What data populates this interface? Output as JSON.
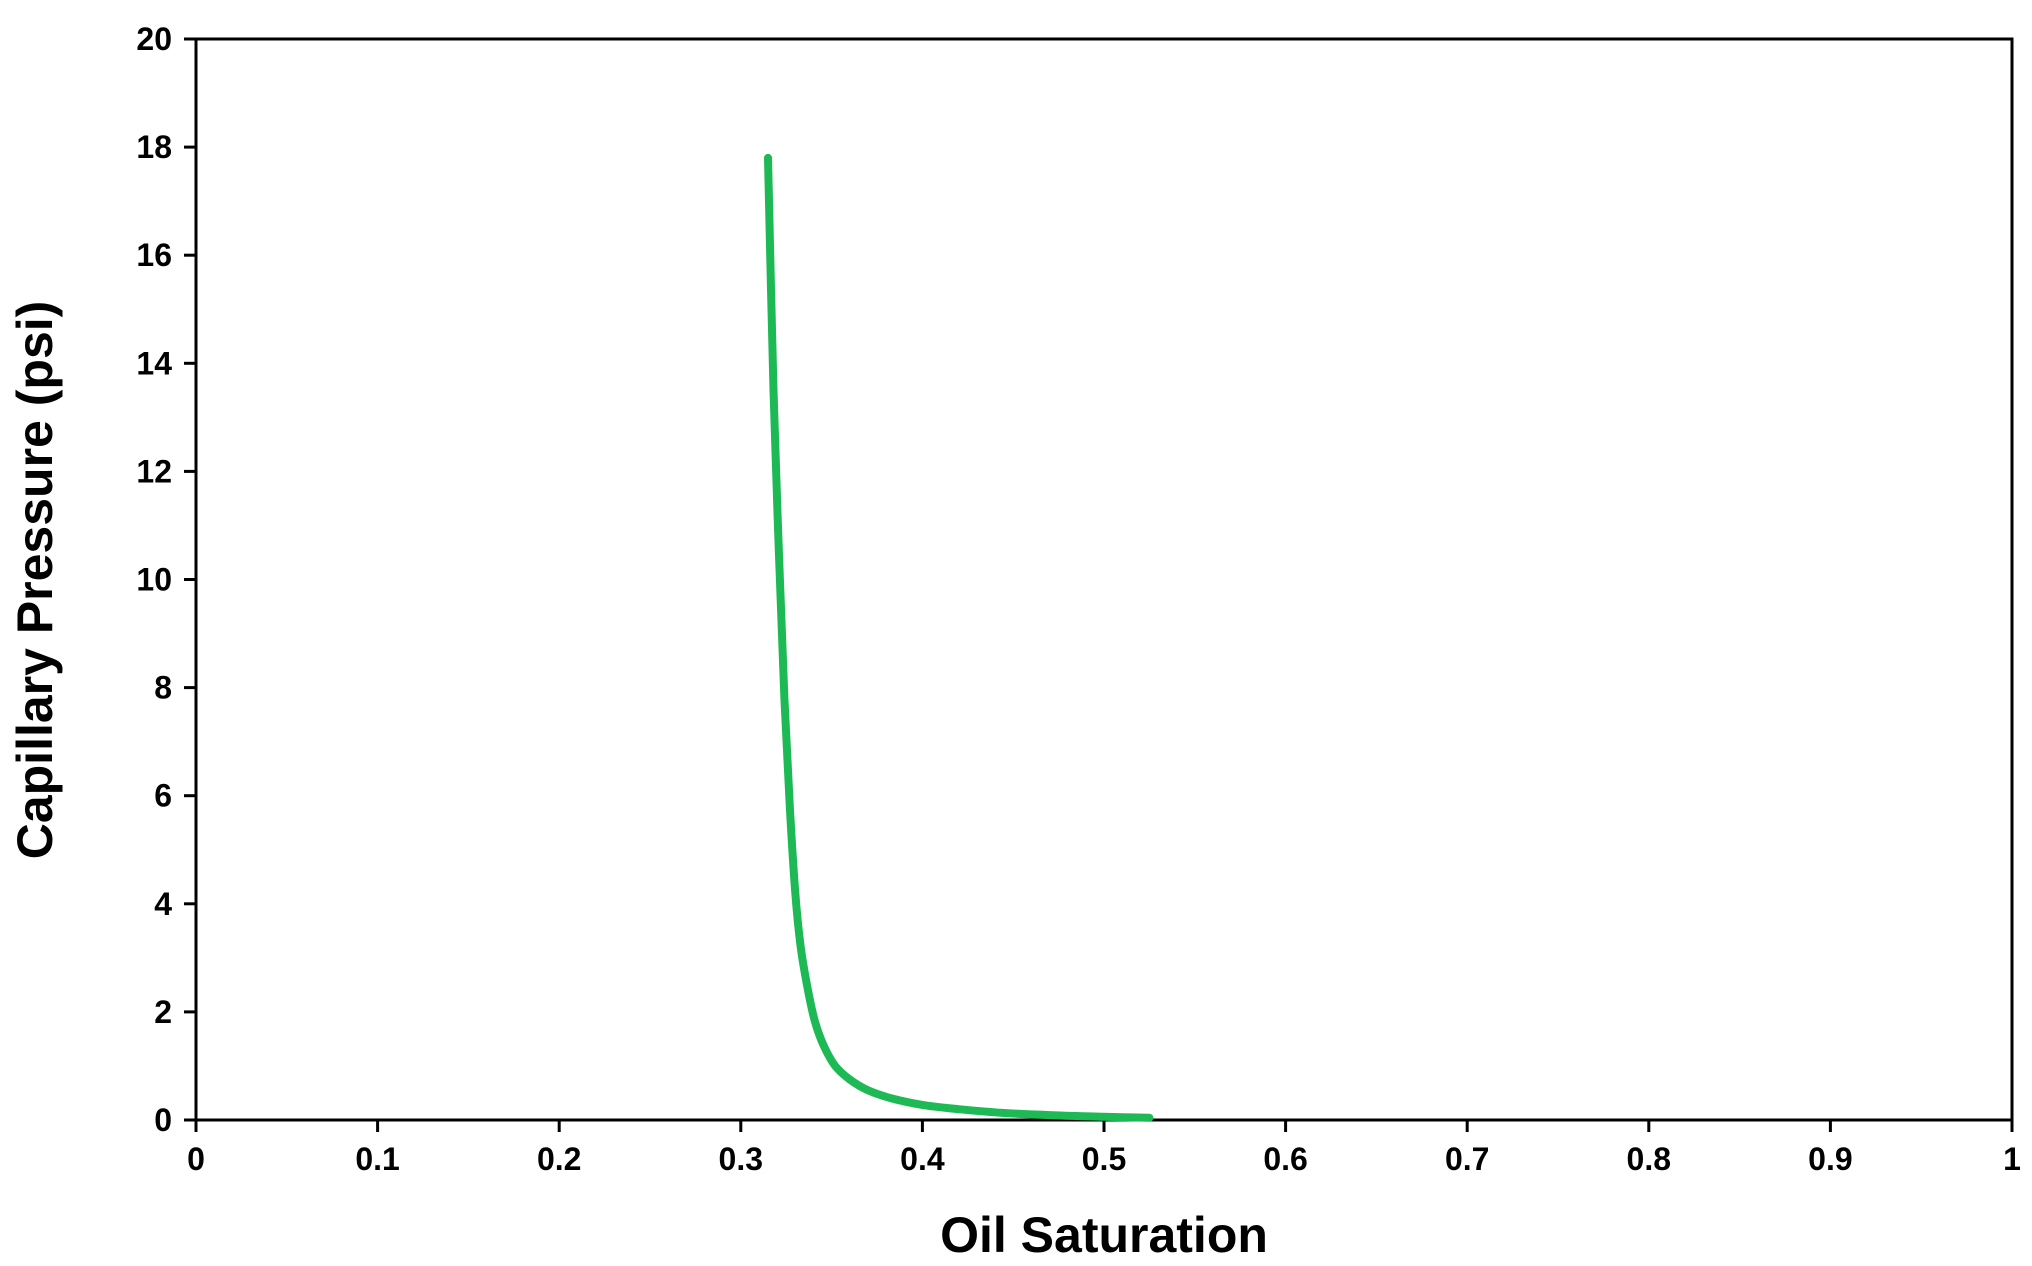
{
  "chart_data": {
    "type": "line",
    "title": "",
    "xlabel": "Oil Saturation",
    "ylabel": "Capillary Pressure (psi)",
    "xlim": [
      0,
      1
    ],
    "ylim": [
      0,
      20
    ],
    "x_ticks": [
      0,
      0.1,
      0.2,
      0.3,
      0.4,
      0.5,
      0.6,
      0.7,
      0.8,
      0.9,
      1
    ],
    "x_tick_labels": [
      "0",
      "0.1",
      "0.2",
      "0.3",
      "0.4",
      "0.5",
      "0.6",
      "0.7",
      "0.8",
      "0.9",
      "1"
    ],
    "y_ticks": [
      0,
      2,
      4,
      6,
      8,
      10,
      12,
      14,
      16,
      18,
      20
    ],
    "y_tick_labels": [
      "0",
      "2",
      "4",
      "6",
      "8",
      "10",
      "12",
      "14",
      "16",
      "18",
      "20"
    ],
    "grid": false,
    "legend": "none",
    "series": [
      {
        "color": "#1db954",
        "x": [
          0.315,
          0.318,
          0.321,
          0.324,
          0.327,
          0.33,
          0.333,
          0.337,
          0.341,
          0.346,
          0.352,
          0.36,
          0.37,
          0.383,
          0.4,
          0.42,
          0.445,
          0.47,
          0.5,
          0.525
        ],
        "y": [
          17.8,
          13.5,
          10.5,
          7.8,
          5.8,
          4.2,
          3.2,
          2.4,
          1.8,
          1.35,
          1.0,
          0.75,
          0.55,
          0.4,
          0.28,
          0.2,
          0.13,
          0.09,
          0.06,
          0.04
        ]
      }
    ]
  }
}
